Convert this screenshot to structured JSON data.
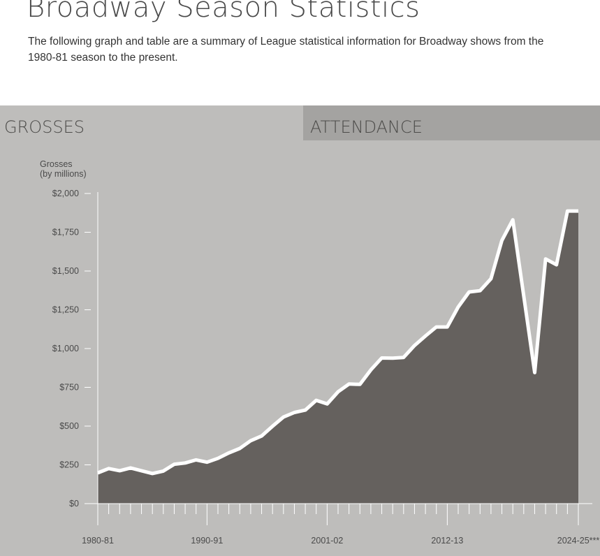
{
  "header": {
    "title": "Broadway Season Statistics",
    "intro": "The following graph and table are a summary of League statistical information for Broadway shows from the 1980-81 season to the present."
  },
  "tabs": [
    {
      "label": "GROSSES",
      "active": true
    },
    {
      "label": "ATTENDANCE",
      "active": false
    }
  ],
  "colors": {
    "panel_bg": "#bebdbb",
    "inactive_tab_bg": "#a4a3a1",
    "area_fill": "#65615e",
    "line": "#ffffff"
  },
  "chart_data": {
    "type": "area",
    "title": "",
    "ylabel_line1": "Grosses",
    "ylabel_line2": "(by millions)",
    "xlabel": "",
    "ylim": [
      0,
      2000
    ],
    "y_ticks": [
      0,
      250,
      500,
      750,
      1000,
      1250,
      1500,
      1750,
      2000
    ],
    "y_tick_labels": [
      "$0",
      "$250",
      "$500",
      "$750",
      "$1,000",
      "$1,250",
      "$1,500",
      "$1,750",
      "$2,000"
    ],
    "x_tick_labels": [
      {
        "index": 0,
        "label": "1980-81"
      },
      {
        "index": 10,
        "label": "1990-91"
      },
      {
        "index": 21,
        "label": "2001-02"
      },
      {
        "index": 32,
        "label": "2012-13"
      },
      {
        "index": 44,
        "label": "2024-25***"
      }
    ],
    "series": [
      {
        "name": "Grosses",
        "values": [
          198,
          226,
          212,
          230,
          212,
          194,
          210,
          254,
          262,
          282,
          267,
          292,
          327,
          356,
          406,
          436,
          499,
          558,
          588,
          603,
          666,
          643,
          721,
          771,
          769,
          862,
          939,
          938,
          943,
          1020,
          1081,
          1139,
          1139,
          1268,
          1365,
          1373,
          1450,
          1697,
          1830,
          1340,
          845,
          1578,
          1540,
          1887,
          1887
        ]
      }
    ]
  }
}
